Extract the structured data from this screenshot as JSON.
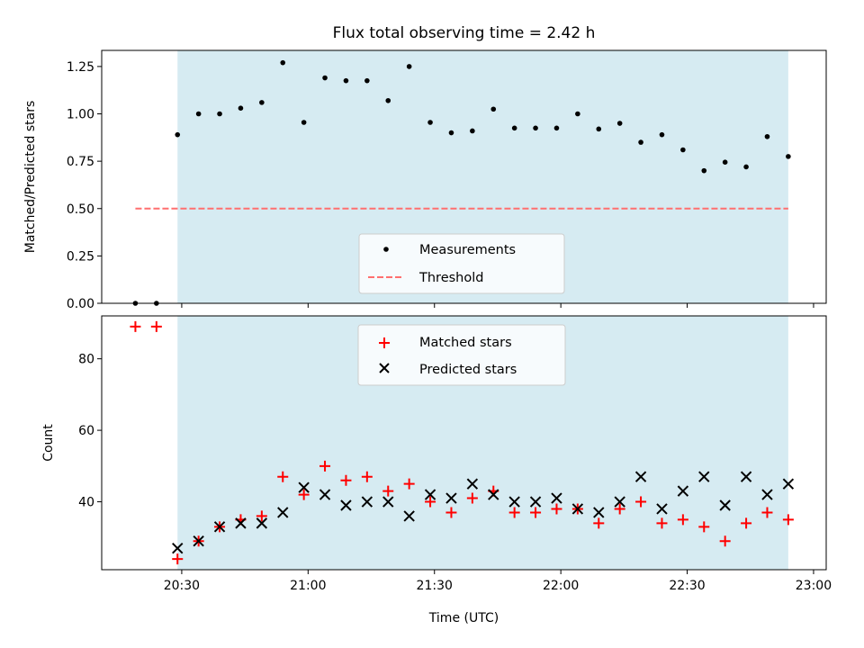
{
  "chart_data": [
    {
      "type": "scatter",
      "title": "Flux total observing time = 2.42 h",
      "xlabel": "",
      "ylabel": "Matched/Predicted stars",
      "ylim": [
        0,
        1.335
      ],
      "yticks": [
        "0.00",
        "0.25",
        "0.50",
        "0.75",
        "1.00",
        "1.25"
      ],
      "ytick_values": [
        0,
        0.25,
        0.5,
        0.75,
        1.0,
        1.25
      ],
      "shaded_span": [
        "20:29",
        "22:54"
      ],
      "shade_color": "#add8e6",
      "legend": {
        "placement": "lower center",
        "entries": [
          "Measurements",
          "Threshold"
        ]
      },
      "series": [
        {
          "name": "Measurements",
          "marker": "dot",
          "color": "#000000",
          "x": [
            "20:19",
            "20:24",
            "20:29",
            "20:34",
            "20:39",
            "20:44",
            "20:49",
            "20:54",
            "20:59",
            "21:04",
            "21:09",
            "21:14",
            "21:19",
            "21:24",
            "21:29",
            "21:34",
            "21:39",
            "21:44",
            "21:49",
            "21:54",
            "21:59",
            "22:04",
            "22:09",
            "22:14",
            "22:19",
            "22:24",
            "22:29",
            "22:34",
            "22:39",
            "22:44",
            "22:49",
            "22:54"
          ],
          "y": [
            0.0,
            0.0,
            0.89,
            1.0,
            1.0,
            1.03,
            1.06,
            1.27,
            0.955,
            1.19,
            1.175,
            1.175,
            1.07,
            1.25,
            0.955,
            0.9,
            0.91,
            1.025,
            0.925,
            0.925,
            0.925,
            1.0,
            0.92,
            0.95,
            0.85,
            0.89,
            0.81,
            0.7,
            0.745,
            0.72,
            0.88,
            0.775
          ]
        },
        {
          "name": "Threshold",
          "style": "dashed",
          "color": "#ff6f6f",
          "x": [
            "20:19",
            "22:54"
          ],
          "y": [
            0.5,
            0.5
          ]
        }
      ]
    },
    {
      "type": "scatter",
      "xlabel": "Time (UTC)",
      "ylabel": "Count",
      "ylim": [
        21,
        92
      ],
      "yticks": [
        "40",
        "60",
        "80"
      ],
      "ytick_values": [
        40,
        60,
        80
      ],
      "xlim": [
        "20:11",
        "23:03"
      ],
      "xticks": [
        "20:30",
        "21:00",
        "21:30",
        "22:00",
        "22:30",
        "23:00"
      ],
      "shaded_span": [
        "20:29",
        "22:54"
      ],
      "shade_color": "#add8e6",
      "legend": {
        "placement": "upper center",
        "entries": [
          "Matched stars",
          "Predicted stars"
        ]
      },
      "series": [
        {
          "name": "Matched stars",
          "marker": "plus",
          "color": "#ff0000",
          "x": [
            "20:19",
            "20:24",
            "20:29",
            "20:34",
            "20:39",
            "20:44",
            "20:49",
            "20:54",
            "20:59",
            "21:04",
            "21:09",
            "21:14",
            "21:19",
            "21:24",
            "21:29",
            "21:34",
            "21:39",
            "21:44",
            "21:49",
            "21:54",
            "21:59",
            "22:04",
            "22:09",
            "22:14",
            "22:19",
            "22:24",
            "22:29",
            "22:34",
            "22:39",
            "22:44",
            "22:49",
            "22:54"
          ],
          "y": [
            89,
            89,
            24,
            29,
            33,
            35,
            36,
            47,
            42,
            50,
            46,
            47,
            43,
            45,
            40,
            37,
            41,
            43,
            37,
            37,
            38,
            38,
            34,
            38,
            40,
            34,
            35,
            33,
            29,
            34,
            37,
            35
          ]
        },
        {
          "name": "Predicted stars",
          "marker": "x",
          "color": "#000000",
          "x": [
            "20:29",
            "20:34",
            "20:39",
            "20:44",
            "20:49",
            "20:54",
            "20:59",
            "21:04",
            "21:09",
            "21:14",
            "21:19",
            "21:24",
            "21:29",
            "21:34",
            "21:39",
            "21:44",
            "21:49",
            "21:54",
            "21:59",
            "22:04",
            "22:09",
            "22:14",
            "22:19",
            "22:24",
            "22:29",
            "22:34",
            "22:39",
            "22:44",
            "22:49",
            "22:54"
          ],
          "y": [
            27,
            29,
            33,
            34,
            34,
            37,
            44,
            42,
            39,
            40,
            40,
            36,
            42,
            41,
            45,
            42,
            40,
            40,
            41,
            38,
            37,
            40,
            47,
            38,
            43,
            47,
            39,
            47,
            42,
            45
          ]
        }
      ]
    }
  ]
}
